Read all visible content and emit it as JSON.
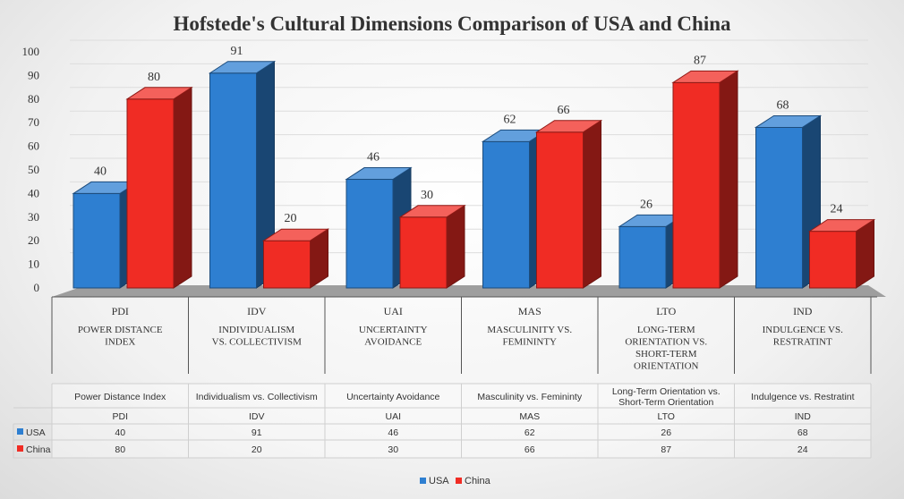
{
  "chart_data": {
    "type": "bar",
    "title": "Hofstede's Cultural Dimensions Comparison of USA and China",
    "ylim": [
      0,
      100
    ],
    "yticks": [
      0,
      10,
      20,
      30,
      40,
      50,
      60,
      70,
      80,
      90,
      100
    ],
    "categories": [
      {
        "code": "PDI",
        "upper": [
          "POWER DISTANCE",
          "INDEX"
        ],
        "full": [
          "Power Distance Index"
        ]
      },
      {
        "code": "IDV",
        "upper": [
          "INDIVIDUALISM",
          "VS. COLLECTIVISM"
        ],
        "full": [
          "Individualism vs. Collectivism"
        ]
      },
      {
        "code": "UAI",
        "upper": [
          "UNCERTAINTY",
          "AVOIDANCE"
        ],
        "full": [
          "Uncertainty Avoidance"
        ]
      },
      {
        "code": "MAS",
        "upper": [
          "MASCULINITY VS.",
          "FEMININTY"
        ],
        "full": [
          "Masculinity vs. Femininty"
        ]
      },
      {
        "code": "LTO",
        "upper": [
          "LONG-TERM",
          "ORIENTATION VS.",
          "SHORT-TERM",
          "ORIENTATION"
        ],
        "full": [
          "Long-Term Orientation vs.",
          "Short-Term Orientation"
        ]
      },
      {
        "code": "IND",
        "upper": [
          "INDULGENCE VS.",
          "RESTRATINT"
        ],
        "full": [
          "Indulgence vs. Restratint"
        ]
      }
    ],
    "series": [
      {
        "name": "USA",
        "color": "#2e7fd1",
        "values": [
          40,
          91,
          46,
          62,
          26,
          68
        ]
      },
      {
        "name": "China",
        "color": "#f02c24",
        "values": [
          80,
          20,
          30,
          66,
          87,
          24
        ]
      }
    ],
    "legend_position": "bottom",
    "grid": true
  }
}
